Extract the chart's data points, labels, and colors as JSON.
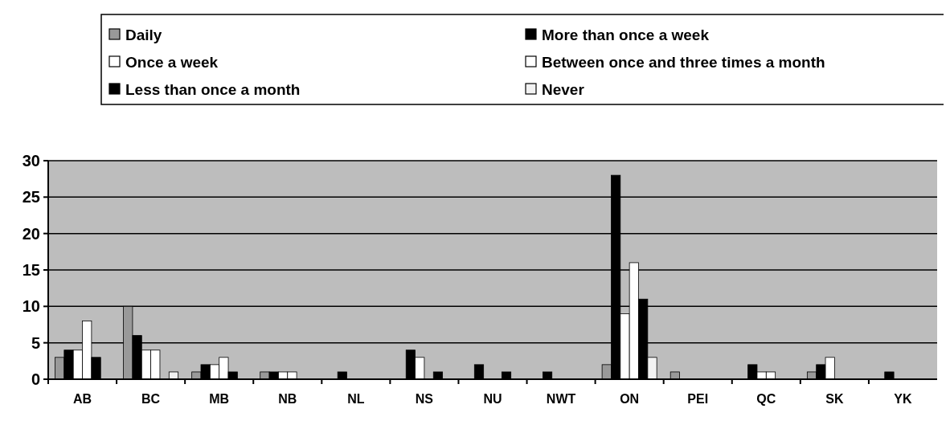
{
  "chart_data": {
    "type": "bar",
    "categories": [
      "AB",
      "BC",
      "MB",
      "NB",
      "NL",
      "NS",
      "NU",
      "NWT",
      "ON",
      "PEI",
      "QC",
      "SK",
      "YK"
    ],
    "series": [
      {
        "name": "Daily",
        "color": "#999999",
        "values": [
          3,
          10,
          1,
          1,
          0,
          0,
          0,
          0,
          2,
          1,
          0,
          1,
          0
        ]
      },
      {
        "name": "More than once a week",
        "color": "#000000",
        "values": [
          4,
          6,
          2,
          1,
          1,
          4,
          2,
          1,
          28,
          0,
          2,
          2,
          1
        ]
      },
      {
        "name": "Once a week",
        "color": "#ffffff",
        "values": [
          4,
          4,
          2,
          1,
          0,
          3,
          0,
          0,
          9,
          0,
          1,
          3,
          0
        ]
      },
      {
        "name": "Between once and three times a month",
        "color": "#ffffff",
        "values": [
          8,
          4,
          3,
          1,
          0,
          0,
          0,
          0,
          16,
          0,
          1,
          0,
          0
        ]
      },
      {
        "name": "Less than once a month",
        "color": "#000000",
        "values": [
          3,
          0,
          1,
          0,
          0,
          1,
          1,
          0,
          11,
          0,
          0,
          0,
          0
        ]
      },
      {
        "name": "Never",
        "color": "#f2f2f2",
        "values": [
          0,
          1,
          0,
          0,
          0,
          0,
          0,
          0,
          3,
          0,
          0,
          0,
          0
        ]
      }
    ],
    "ylim": [
      0,
      30
    ],
    "yticks": [
      0,
      5,
      10,
      15,
      20,
      25,
      30
    ],
    "grid": "y",
    "legend": "top"
  }
}
